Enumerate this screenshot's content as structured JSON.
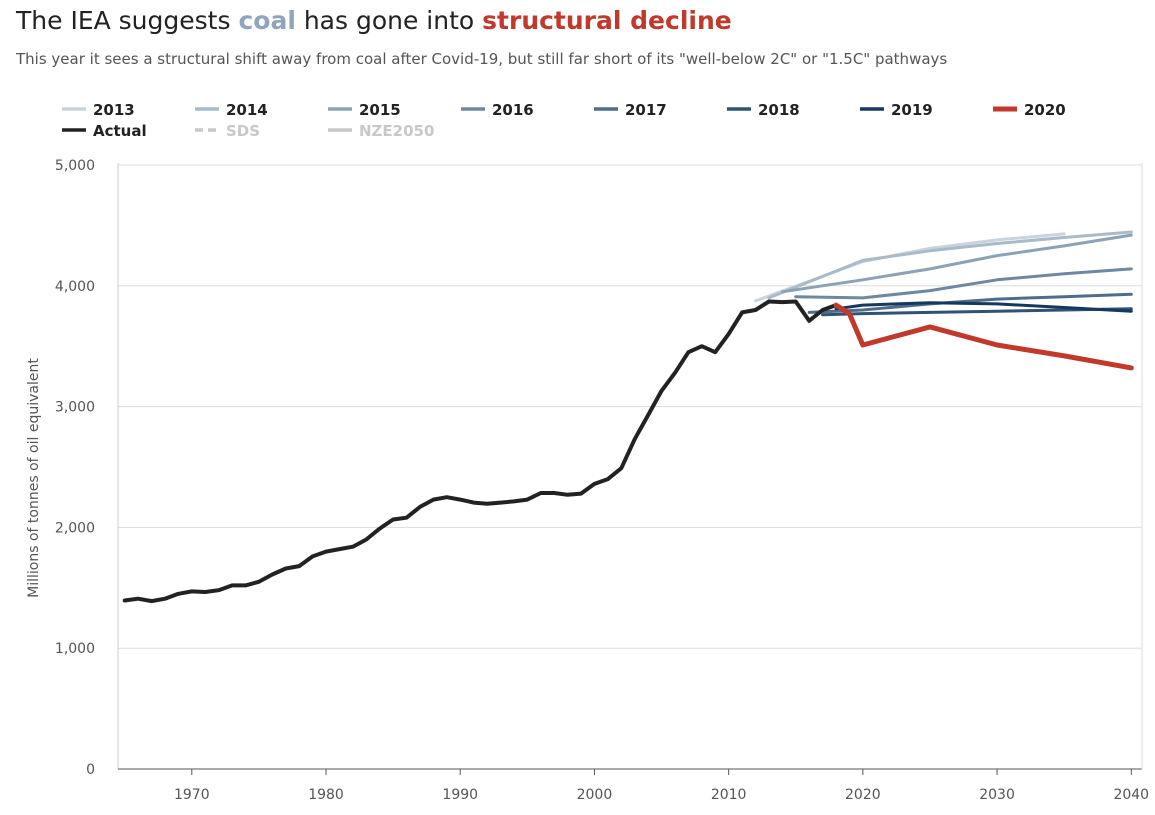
{
  "title": {
    "prefix": "The IEA suggests ",
    "coal": "coal",
    "middle": " has gone into ",
    "decline": "structural decline"
  },
  "subtitle": "This year it sees a structural shift away from coal after Covid-19, but still far short of its \"well-below 2C\" or \"1.5C\" pathways",
  "colors": {
    "coal": "#8ea5bd",
    "decline": "#c0392b",
    "grid": "#dddddd",
    "actual": "#222222"
  },
  "chart_data": {
    "type": "line",
    "ylabel": "Millions of tonnes of oil equivalent",
    "xlim": [
      1964.5,
      2040.8
    ],
    "ylim": [
      0,
      5000
    ],
    "xticks": [
      1970,
      1980,
      1990,
      2000,
      2010,
      2020,
      2030,
      2040
    ],
    "yticks": [
      0,
      1000,
      2000,
      3000,
      4000,
      5000
    ],
    "ytick_labels": [
      "0",
      "1,000",
      "2,000",
      "3,000",
      "4,000",
      "5,000"
    ],
    "legend": [
      {
        "name": "2013",
        "color": "#c9d3de",
        "style": "solid",
        "active": true
      },
      {
        "name": "2014",
        "color": "#a9bac9",
        "style": "solid",
        "active": true
      },
      {
        "name": "2015",
        "color": "#8ca2b6",
        "style": "solid",
        "active": true
      },
      {
        "name": "2016",
        "color": "#6e88a1",
        "style": "solid",
        "active": true
      },
      {
        "name": "2017",
        "color": "#4f6d8b",
        "style": "solid",
        "active": true
      },
      {
        "name": "2018",
        "color": "#2f5275",
        "style": "solid",
        "active": true
      },
      {
        "name": "2019",
        "color": "#14385e",
        "style": "solid",
        "active": true
      },
      {
        "name": "2020",
        "color": "#c0392b",
        "style": "solid",
        "active": true
      },
      {
        "name": "Actual",
        "color": "#222222",
        "style": "solid",
        "active": true
      },
      {
        "name": "SDS",
        "color": "#c8c8c8",
        "style": "dashed",
        "active": false
      },
      {
        "name": "NZE2050",
        "color": "#c8c8c8",
        "style": "solid",
        "active": false
      }
    ],
    "series": [
      {
        "name": "Actual",
        "color": "#222222",
        "width": 4,
        "points": [
          [
            1965,
            1395
          ],
          [
            1966,
            1410
          ],
          [
            1967,
            1390
          ],
          [
            1968,
            1410
          ],
          [
            1969,
            1450
          ],
          [
            1970,
            1470
          ],
          [
            1971,
            1465
          ],
          [
            1972,
            1480
          ],
          [
            1973,
            1520
          ],
          [
            1974,
            1520
          ],
          [
            1975,
            1550
          ],
          [
            1976,
            1610
          ],
          [
            1977,
            1660
          ],
          [
            1978,
            1680
          ],
          [
            1979,
            1760
          ],
          [
            1980,
            1800
          ],
          [
            1981,
            1820
          ],
          [
            1982,
            1840
          ],
          [
            1983,
            1900
          ],
          [
            1984,
            1990
          ],
          [
            1985,
            2065
          ],
          [
            1986,
            2080
          ],
          [
            1987,
            2170
          ],
          [
            1988,
            2230
          ],
          [
            1989,
            2250
          ],
          [
            1990,
            2230
          ],
          [
            1991,
            2205
          ],
          [
            1992,
            2195
          ],
          [
            1993,
            2205
          ],
          [
            1994,
            2215
          ],
          [
            1995,
            2230
          ],
          [
            1996,
            2285
          ],
          [
            1997,
            2285
          ],
          [
            1998,
            2270
          ],
          [
            1999,
            2280
          ],
          [
            2000,
            2360
          ],
          [
            2001,
            2400
          ],
          [
            2002,
            2490
          ],
          [
            2003,
            2730
          ],
          [
            2004,
            2930
          ],
          [
            2005,
            3130
          ],
          [
            2006,
            3280
          ],
          [
            2007,
            3450
          ],
          [
            2008,
            3500
          ],
          [
            2009,
            3450
          ],
          [
            2010,
            3600
          ],
          [
            2011,
            3780
          ],
          [
            2012,
            3800
          ],
          [
            2013,
            3870
          ],
          [
            2014,
            3865
          ],
          [
            2015,
            3870
          ],
          [
            2016,
            3710
          ],
          [
            2017,
            3800
          ],
          [
            2018,
            3840
          ]
        ]
      },
      {
        "name": "2013",
        "color": "#c9d3de",
        "width": 3,
        "points": [
          [
            2012,
            3875
          ],
          [
            2020,
            4200
          ],
          [
            2025,
            4310
          ],
          [
            2030,
            4380
          ],
          [
            2035,
            4430
          ]
        ]
      },
      {
        "name": "2014",
        "color": "#a9bac9",
        "width": 3,
        "points": [
          [
            2013,
            3900
          ],
          [
            2020,
            4210
          ],
          [
            2025,
            4290
          ],
          [
            2030,
            4350
          ],
          [
            2035,
            4400
          ],
          [
            2040,
            4445
          ]
        ]
      },
      {
        "name": "2015",
        "color": "#8ca2b6",
        "width": 3,
        "points": [
          [
            2014,
            3950
          ],
          [
            2020,
            4050
          ],
          [
            2025,
            4140
          ],
          [
            2030,
            4250
          ],
          [
            2035,
            4330
          ],
          [
            2040,
            4420
          ]
        ]
      },
      {
        "name": "2016",
        "color": "#6e88a1",
        "width": 3,
        "points": [
          [
            2015,
            3910
          ],
          [
            2020,
            3900
          ],
          [
            2025,
            3960
          ],
          [
            2030,
            4050
          ],
          [
            2035,
            4100
          ],
          [
            2040,
            4140
          ]
        ]
      },
      {
        "name": "2017",
        "color": "#4f6d8b",
        "width": 3,
        "points": [
          [
            2016,
            3780
          ],
          [
            2020,
            3800
          ],
          [
            2025,
            3850
          ],
          [
            2030,
            3890
          ],
          [
            2035,
            3910
          ],
          [
            2040,
            3930
          ]
        ]
      },
      {
        "name": "2018",
        "color": "#2f5275",
        "width": 3,
        "points": [
          [
            2017,
            3760
          ],
          [
            2020,
            3770
          ],
          [
            2025,
            3780
          ],
          [
            2030,
            3790
          ],
          [
            2035,
            3800
          ],
          [
            2040,
            3810
          ]
        ]
      },
      {
        "name": "2019",
        "color": "#14385e",
        "width": 3,
        "points": [
          [
            2018,
            3810
          ],
          [
            2020,
            3840
          ],
          [
            2025,
            3860
          ],
          [
            2030,
            3850
          ],
          [
            2035,
            3820
          ],
          [
            2040,
            3790
          ]
        ]
      },
      {
        "name": "2020",
        "color": "#c0392b",
        "width": 5,
        "points": [
          [
            2018,
            3840
          ],
          [
            2019,
            3770
          ],
          [
            2020,
            3510
          ],
          [
            2025,
            3660
          ],
          [
            2030,
            3510
          ],
          [
            2035,
            3420
          ],
          [
            2040,
            3320
          ]
        ]
      }
    ]
  }
}
